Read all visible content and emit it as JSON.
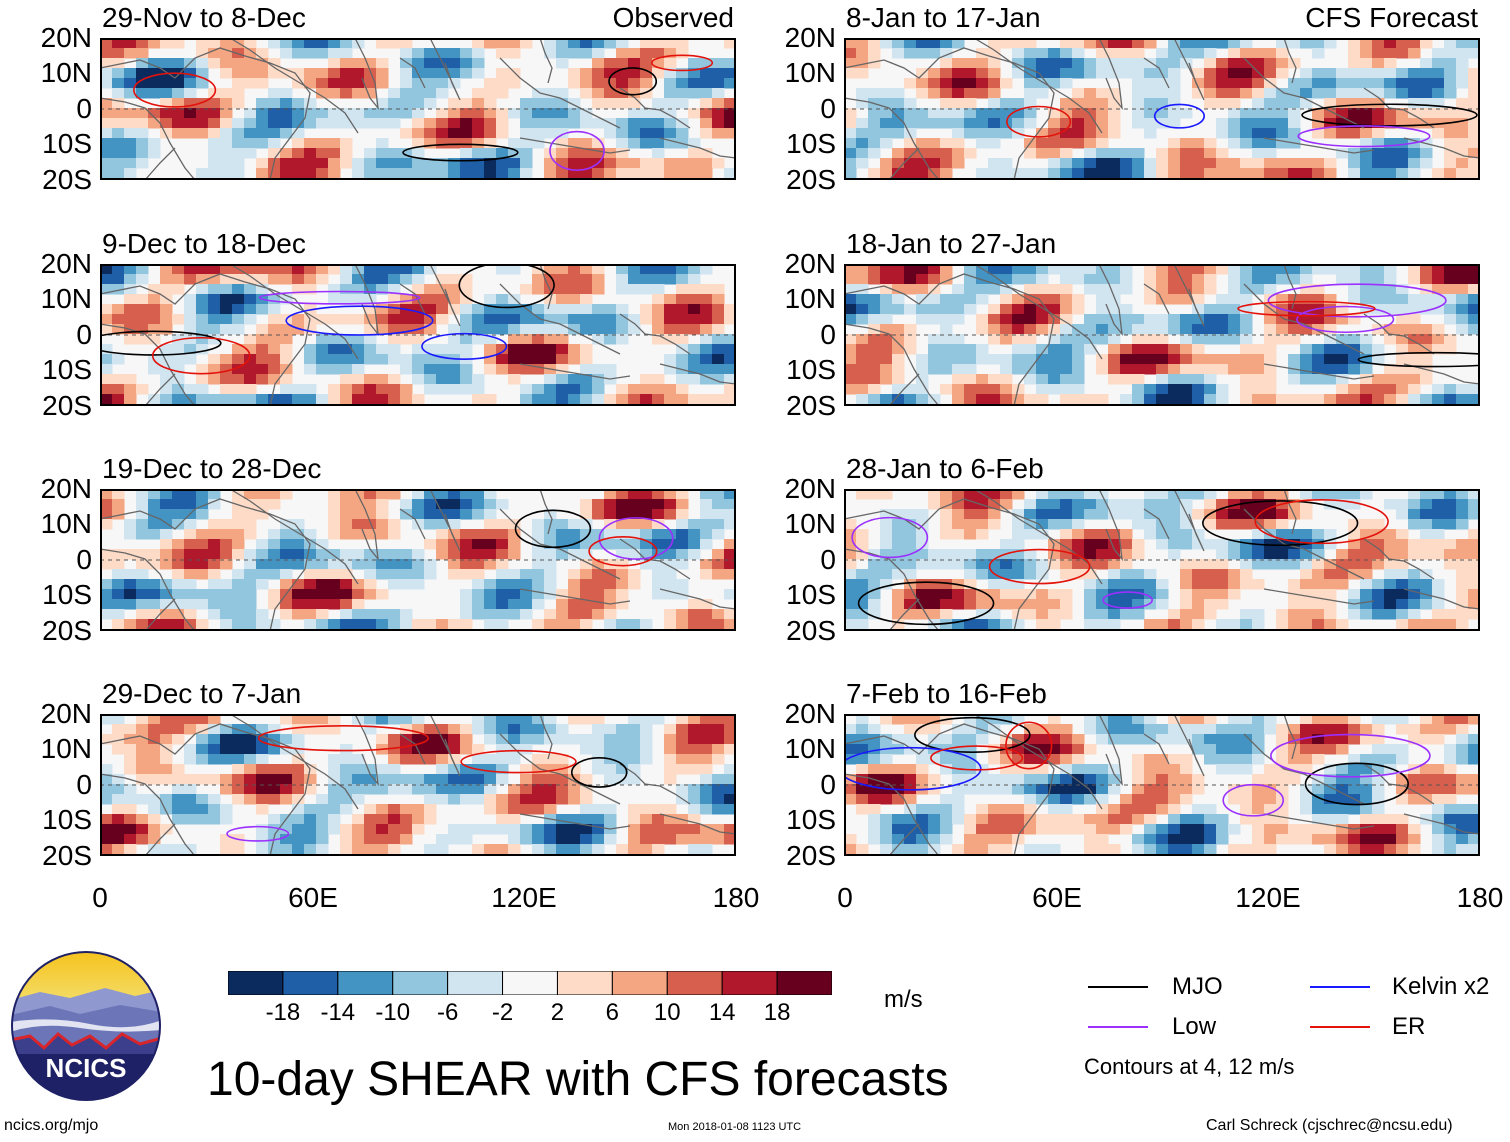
{
  "chart_data": {
    "type": "heatmap",
    "title": "10-day SHEAR with CFS forecasts",
    "variable": "SHEAR",
    "units": "m/s",
    "x_ticks": [
      "0",
      "60E",
      "120E",
      "180"
    ],
    "y_ticks": [
      "20N",
      "10N",
      "0",
      "10S",
      "20S"
    ],
    "xlim": [
      0,
      180
    ],
    "ylim": [
      -20,
      20
    ],
    "colorbar": {
      "colors": [
        "#0b2a5e",
        "#1f5fa8",
        "#4393c3",
        "#92c5de",
        "#d1e5f0",
        "#f7f7f7",
        "#fddbc7",
        "#f4a582",
        "#d6604d",
        "#b2182b",
        "#67001f"
      ],
      "ticks": [
        "-18",
        "-14",
        "-10",
        "-6",
        "-2",
        "2",
        "6",
        "10",
        "14",
        "18"
      ]
    },
    "panels": [
      {
        "id": "obs1",
        "column": "left",
        "row": 0,
        "period": "29-Nov to 8-Dec",
        "tag": "Observed",
        "source": "Observed"
      },
      {
        "id": "obs2",
        "column": "left",
        "row": 1,
        "period": "9-Dec to 18-Dec",
        "tag": "",
        "source": "Observed"
      },
      {
        "id": "obs3",
        "column": "left",
        "row": 2,
        "period": "19-Dec to 28-Dec",
        "tag": "",
        "source": "Observed"
      },
      {
        "id": "obs4",
        "column": "left",
        "row": 3,
        "period": "29-Dec to 7-Jan",
        "tag": "",
        "source": "Observed"
      },
      {
        "id": "fc1",
        "column": "right",
        "row": 0,
        "period": "8-Jan to 17-Jan",
        "tag": "CFS Forecast",
        "source": "CFS Forecast"
      },
      {
        "id": "fc2",
        "column": "right",
        "row": 1,
        "period": "18-Jan to 27-Jan",
        "tag": "",
        "source": "CFS Forecast"
      },
      {
        "id": "fc3",
        "column": "right",
        "row": 2,
        "period": "28-Jan to 6-Feb",
        "tag": "",
        "source": "CFS Forecast"
      },
      {
        "id": "fc4",
        "column": "right",
        "row": 3,
        "period": "7-Feb to 16-Feb",
        "tag": "",
        "source": "CFS Forecast"
      }
    ],
    "legend": [
      {
        "name": "MJO",
        "color": "#000000"
      },
      {
        "name": "Kelvin x2",
        "color": "#1a1aff"
      },
      {
        "name": "Low",
        "color": "#9b30ff"
      },
      {
        "name": "ER",
        "color": "#e3120b"
      }
    ],
    "contour_note": "Contours at 4, 12 m/s"
  },
  "logo": {
    "text": "NCICS"
  },
  "footer": {
    "url": "ncics.org/mjo",
    "timestamp": "Mon 2018-01-08 1123 UTC",
    "credit": "Carl Schreck (cjschrec@ncsu.edu)"
  }
}
